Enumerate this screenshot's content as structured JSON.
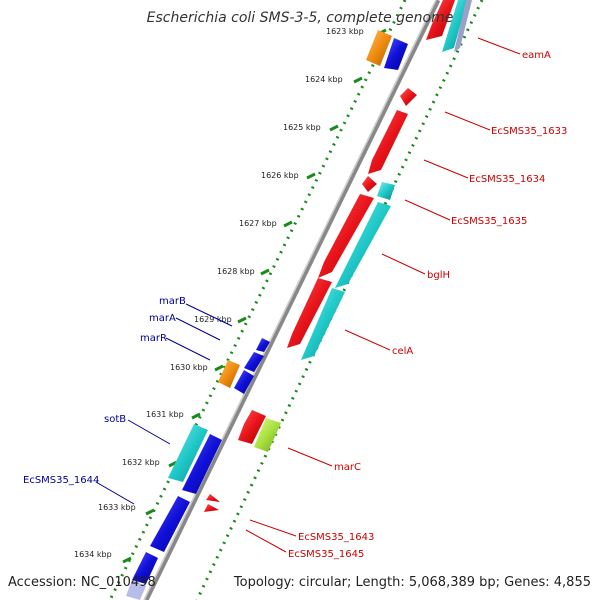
{
  "title": "Escherichia coli SMS-3-5, complete genome",
  "accession": "Accession: NC_010498",
  "summary": "Topology: circular; Length: 5,068,389 bp; Genes: 4,855",
  "ticks": [
    "1623 kbp",
    "1624 kbp",
    "1625 kbp",
    "1626 kbp",
    "1627 kbp",
    "1628 kbp",
    "1629 kbp",
    "1630 kbp",
    "1631 kbp",
    "1632 kbp",
    "1633 kbp",
    "1634 kbp"
  ],
  "labels_forward": [
    "eamA",
    "EcSMS35_1633",
    "EcSMS35_1634",
    "EcSMS35_1635",
    "bglH",
    "celA",
    "marC",
    "EcSMS35_1643",
    "EcSMS35_1645"
  ],
  "labels_reverse": [
    "marB",
    "marA",
    "marR",
    "sotB",
    "EcSMS35_1644"
  ],
  "colors": {
    "forward_label": "#cc0000",
    "reverse_label": "#000099",
    "red": "#e8141a",
    "blue": "#1010d8",
    "cyan": "#20c8c8",
    "orange": "#f08c10",
    "green": "#a8e040",
    "tick_green": "#1a8a1a",
    "backbone": "#888888"
  }
}
